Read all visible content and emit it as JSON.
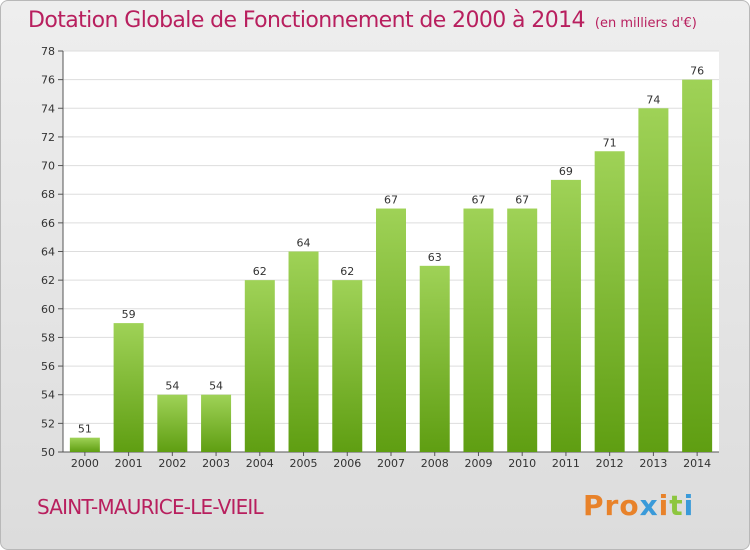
{
  "title": "Dotation Globale de Fonctionnement de 2000 à 2014",
  "subtitle": "(en milliers d'€)",
  "commune": "SAINT-MAURICE-LE-VIEIL",
  "logo": {
    "text": "Proxiti",
    "colors": [
      "#e8822a",
      "#e8822a",
      "#e8822a",
      "#3a9ad9",
      "#e8822a",
      "#8dc63f",
      "#3a9ad9"
    ]
  },
  "colors": {
    "title": "#b81f5e",
    "bar_light": "#9fd257",
    "bar_dark": "#5f9e12"
  },
  "chart_data": {
    "type": "bar",
    "title": "Dotation Globale de Fonctionnement de 2000 à 2014",
    "subtitle": "(en milliers d'€)",
    "categories": [
      "2000",
      "2001",
      "2002",
      "2003",
      "2004",
      "2005",
      "2006",
      "2007",
      "2008",
      "2009",
      "2010",
      "2011",
      "2012",
      "2013",
      "2014"
    ],
    "values": [
      51,
      59,
      54,
      54,
      62,
      64,
      62,
      67,
      63,
      67,
      67,
      69,
      71,
      74,
      76
    ],
    "ylim": [
      50,
      78
    ],
    "yticks": [
      50,
      52,
      54,
      56,
      58,
      60,
      62,
      64,
      66,
      68,
      70,
      72,
      74,
      76,
      78
    ],
    "grid": true,
    "xlabel": "",
    "ylabel": ""
  }
}
